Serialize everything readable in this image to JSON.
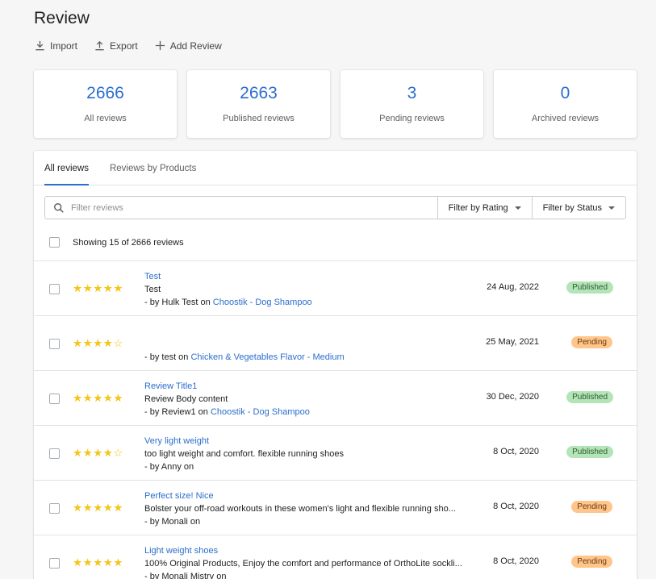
{
  "page": {
    "title": "Review"
  },
  "actions": {
    "import": "Import",
    "export": "Export",
    "add": "Add Review"
  },
  "stats": [
    {
      "value": "2666",
      "label": "All reviews"
    },
    {
      "value": "2663",
      "label": "Published reviews"
    },
    {
      "value": "3",
      "label": "Pending reviews"
    },
    {
      "value": "0",
      "label": "Archived reviews"
    }
  ],
  "tabs": [
    {
      "label": "All reviews"
    },
    {
      "label": "Reviews by Products"
    }
  ],
  "filters": {
    "placeholder": "Filter reviews",
    "rating": "Filter by Rating",
    "status": "Filter by Status"
  },
  "list": {
    "showing": "Showing 15 of 2666 reviews"
  },
  "reviews": [
    {
      "stars": "★★★★★",
      "rating": 5,
      "title": "Test",
      "body": "Test",
      "by": "- by Hulk Test on ",
      "product": "Choostik - Dog Shampoo",
      "date": "24 Aug, 2022",
      "status": "Published"
    },
    {
      "stars": "★★★★☆",
      "rating": 4,
      "title": "",
      "body": "",
      "by": "- by test on ",
      "product": "Chicken & Vegetables Flavor - Medium",
      "date": "25 May, 2021",
      "status": "Pending"
    },
    {
      "stars": "★★★★★",
      "rating": 5,
      "title": "Review Title1",
      "body": "Review Body content",
      "by": "- by Review1 on ",
      "product": "Choostik - Dog Shampoo",
      "date": "30 Dec, 2020",
      "status": "Published"
    },
    {
      "stars": "★★★★☆",
      "rating": 4,
      "title": "Very light weight",
      "body": "too light weight and comfort. flexible running shoes",
      "by": "- by Anny on",
      "product": "",
      "date": "8 Oct, 2020",
      "status": "Published"
    },
    {
      "stars": "★★★★★",
      "rating": 5,
      "title": "Perfect size! Nice",
      "body": "Bolster your off-road workouts in these women's light and flexible running sho...",
      "by": "- by Monali on",
      "product": "",
      "date": "8 Oct, 2020",
      "status": "Pending"
    },
    {
      "stars": "★★★★★",
      "rating": 5,
      "title": "Light weight shoes",
      "body": "100% Original Products, Enjoy the comfort and performance of OrthoLite sockli...",
      "by": "- by Monali Mistry on",
      "product": "",
      "date": "8 Oct, 2020",
      "status": "Pending"
    }
  ]
}
